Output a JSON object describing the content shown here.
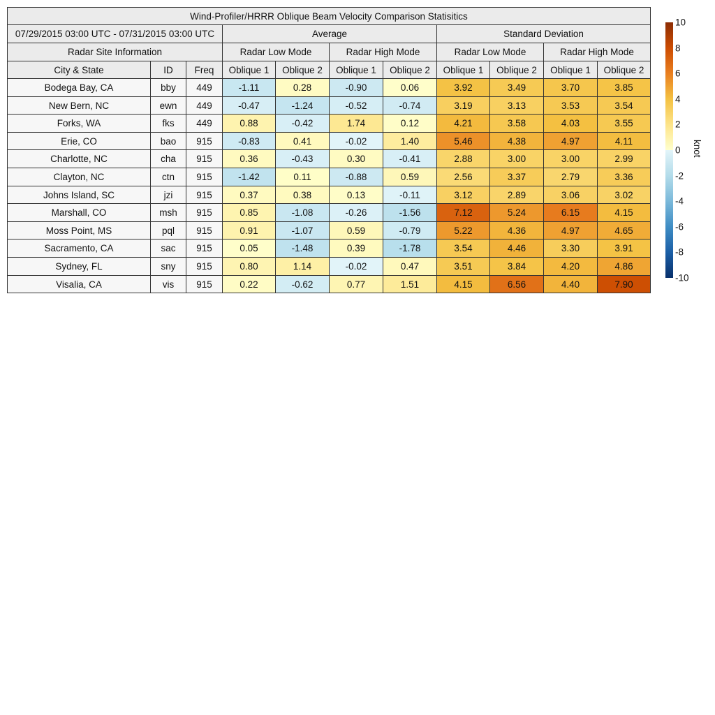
{
  "chart_data": {
    "type": "heatmap",
    "title": "Wind-Profiler/HRRR Oblique Beam Velocity Comparison Statisitics",
    "date_range": "07/29/2015 03:00 UTC - 07/31/2015 03:00 UTC",
    "site_header": "Radar Site Information",
    "groups": [
      "Average",
      "Standard Deviation"
    ],
    "modes": [
      "Radar Low Mode",
      "Radar High Mode",
      "Radar Low Mode",
      "Radar High Mode"
    ],
    "columns": [
      "City & State",
      "ID",
      "Freq",
      "Oblique 1",
      "Oblique 2",
      "Oblique 1",
      "Oblique 2",
      "Oblique 1",
      "Oblique 2",
      "Oblique 1",
      "Oblique 2"
    ],
    "rows": [
      {
        "city": "Bodega Bay, CA",
        "id": "bby",
        "freq": "449",
        "values": [
          "-1.11",
          "0.28",
          "-0.90",
          "0.06",
          "3.92",
          "3.49",
          "3.70",
          "3.85"
        ]
      },
      {
        "city": "New Bern, NC",
        "id": "ewn",
        "freq": "449",
        "values": [
          "-0.47",
          "-1.24",
          "-0.52",
          "-0.74",
          "3.19",
          "3.13",
          "3.53",
          "3.54"
        ]
      },
      {
        "city": "Forks, WA",
        "id": "fks",
        "freq": "449",
        "values": [
          "0.88",
          "-0.42",
          "1.74",
          "0.12",
          "4.21",
          "3.58",
          "4.03",
          "3.55"
        ]
      },
      {
        "city": "Erie, CO",
        "id": "bao",
        "freq": "915",
        "values": [
          "-0.83",
          "0.41",
          "-0.02",
          "1.40",
          "5.46",
          "4.38",
          "4.97",
          "4.11"
        ]
      },
      {
        "city": "Charlotte, NC",
        "id": "cha",
        "freq": "915",
        "values": [
          "0.36",
          "-0.43",
          "0.30",
          "-0.41",
          "2.88",
          "3.00",
          "3.00",
          "2.99"
        ]
      },
      {
        "city": "Clayton, NC",
        "id": "ctn",
        "freq": "915",
        "values": [
          "-1.42",
          "0.11",
          "-0.88",
          "0.59",
          "2.56",
          "3.37",
          "2.79",
          "3.36"
        ]
      },
      {
        "city": "Johns Island, SC",
        "id": "jzi",
        "freq": "915",
        "values": [
          "0.37",
          "0.38",
          "0.13",
          "-0.11",
          "3.12",
          "2.89",
          "3.06",
          "3.02"
        ]
      },
      {
        "city": "Marshall, CO",
        "id": "msh",
        "freq": "915",
        "values": [
          "0.85",
          "-1.08",
          "-0.26",
          "-1.56",
          "7.12",
          "5.24",
          "6.15",
          "4.15"
        ]
      },
      {
        "city": "Moss Point, MS",
        "id": "pql",
        "freq": "915",
        "values": [
          "0.91",
          "-1.07",
          "0.59",
          "-0.79",
          "5.22",
          "4.36",
          "4.97",
          "4.65"
        ]
      },
      {
        "city": "Sacramento, CA",
        "id": "sac",
        "freq": "915",
        "values": [
          "0.05",
          "-1.48",
          "0.39",
          "-1.78",
          "3.54",
          "4.46",
          "3.30",
          "3.91"
        ]
      },
      {
        "city": "Sydney, FL",
        "id": "sny",
        "freq": "915",
        "values": [
          "0.80",
          "1.14",
          "-0.02",
          "0.47",
          "3.51",
          "3.84",
          "4.20",
          "4.86"
        ]
      },
      {
        "city": "Visalia, CA",
        "id": "vis",
        "freq": "915",
        "values": [
          "0.22",
          "-0.62",
          "0.77",
          "1.51",
          "4.15",
          "6.56",
          "4.40",
          "7.90"
        ]
      }
    ],
    "colorbar": {
      "label": "knot",
      "range": [
        -10,
        10
      ],
      "ticks": [
        "10",
        "8",
        "6",
        "4",
        "2",
        "0",
        "-2",
        "-4",
        "-6",
        "-8",
        "-10"
      ]
    },
    "colorscale": [
      [
        -10,
        "#08306b"
      ],
      [
        -8,
        "#1b5fa6"
      ],
      [
        -6,
        "#3f8dc4"
      ],
      [
        -4,
        "#7bb9da"
      ],
      [
        -2,
        "#b3dcea"
      ],
      [
        -0.001,
        "#e2f4f9"
      ],
      [
        0,
        "#ffffcc"
      ],
      [
        2,
        "#fde48a"
      ],
      [
        4,
        "#f4c142"
      ],
      [
        6,
        "#e97f20"
      ],
      [
        8,
        "#cc4c02"
      ],
      [
        10,
        "#8c2d04"
      ]
    ]
  }
}
